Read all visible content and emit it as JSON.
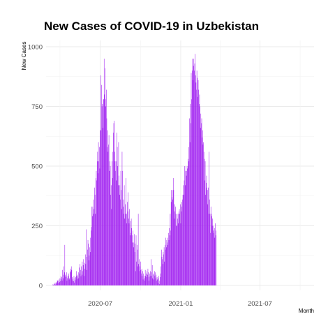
{
  "chart_data": {
    "type": "bar",
    "title": "New Cases of COVID-19 in Uzbekistan",
    "xlabel": "Month",
    "ylabel": "New Cases",
    "ylim": [
      0,
      1000
    ],
    "xlim": [
      "2020-03-12",
      "2021-10-20"
    ],
    "yticks": [
      0,
      250,
      500,
      750,
      1000
    ],
    "xticks": [
      "2020-07",
      "2021-01",
      "2021-07"
    ],
    "grid": true,
    "legend": "none",
    "bar_color": "#a020f0",
    "x_start": "2020-03-15",
    "values": [
      5,
      3,
      0,
      8,
      6,
      12,
      4,
      10,
      15,
      8,
      22,
      18,
      10,
      20,
      25,
      14,
      30,
      18,
      40,
      28,
      35,
      20,
      65,
      30,
      45,
      80,
      55,
      170,
      45,
      40,
      35,
      55,
      20,
      30,
      42,
      38,
      50,
      25,
      30,
      55,
      60,
      70,
      80,
      65,
      35,
      20,
      28,
      18,
      40,
      12,
      30,
      22,
      35,
      40,
      60,
      28,
      45,
      38,
      55,
      30,
      75,
      50,
      90,
      65,
      38,
      80,
      45,
      100,
      60,
      85,
      110,
      40,
      95,
      70,
      130,
      90,
      235,
      120,
      65,
      150,
      190,
      175,
      105,
      125,
      160,
      140,
      200,
      230,
      245,
      330,
      290,
      330,
      360,
      300,
      320,
      410,
      380,
      300,
      450,
      480,
      440,
      520,
      560,
      470,
      600,
      520,
      580,
      490,
      650,
      880,
      650,
      840,
      750,
      760,
      660,
      780,
      780,
      950,
      800,
      910,
      780,
      750,
      820,
      700,
      580,
      650,
      560,
      590,
      630,
      480,
      520,
      500,
      380,
      420,
      320,
      520,
      450,
      560,
      640,
      680,
      690,
      560,
      520,
      480,
      520,
      440,
      640,
      580,
      500,
      420,
      600,
      460,
      380,
      420,
      360,
      480,
      400,
      320,
      560,
      480,
      360,
      330,
      300,
      420,
      280,
      340,
      300,
      450,
      300,
      260,
      350,
      310,
      390,
      280,
      260,
      320,
      210,
      270,
      220,
      280,
      240,
      180,
      210,
      230,
      160,
      180,
      215,
      140,
      175,
      60,
      210,
      100,
      170,
      80,
      150,
      300,
      90,
      110,
      60,
      80,
      100,
      65,
      50,
      70,
      40,
      60,
      25,
      50,
      40,
      30,
      20,
      65,
      40,
      50,
      35,
      60,
      45,
      70,
      55,
      20,
      35,
      50,
      40,
      60,
      110,
      55,
      40,
      85,
      30,
      50,
      45,
      25,
      60,
      40,
      55,
      30,
      45,
      20,
      35,
      25,
      10,
      30,
      40,
      5,
      20,
      35,
      50,
      80,
      150,
      120,
      110,
      90,
      140,
      130,
      160,
      100,
      170,
      150,
      200,
      160,
      190,
      180,
      200,
      170,
      220,
      190,
      240,
      210,
      300,
      230,
      350,
      400,
      370,
      400,
      360,
      450,
      400,
      280,
      340,
      310,
      330,
      300,
      250,
      250,
      300,
      280,
      260,
      300,
      310,
      320,
      300,
      340,
      260,
      310,
      350,
      330,
      360,
      380,
      420,
      380,
      440,
      500,
      420,
      480,
      500,
      460,
      480,
      490,
      500,
      530,
      580,
      520,
      700,
      600,
      760,
      680,
      890,
      780,
      900,
      950,
      860,
      920,
      950,
      900,
      930,
      970,
      880,
      850,
      820,
      900,
      870,
      790,
      860,
      820,
      760,
      800,
      750,
      660,
      720,
      680,
      700,
      620,
      650,
      590,
      600,
      560,
      530,
      440,
      520,
      380,
      430,
      460,
      410,
      400,
      340,
      410,
      300,
      560,
      360,
      300,
      220,
      330,
      300,
      290,
      250,
      280,
      230,
      250,
      220,
      240,
      200,
      260,
      210,
      230
    ]
  }
}
